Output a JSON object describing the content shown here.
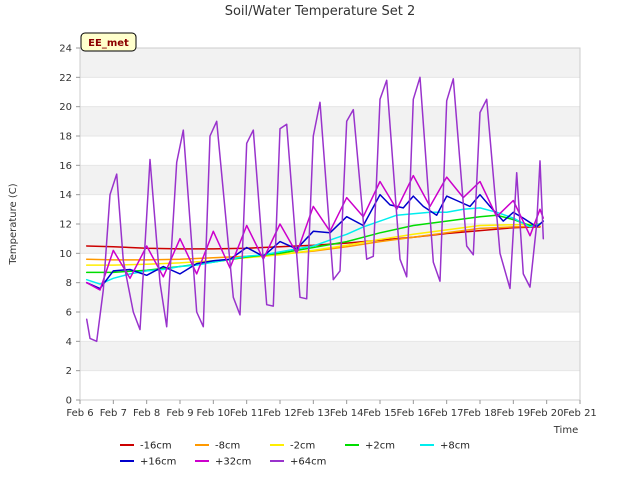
{
  "chart_data": {
    "type": "line",
    "title": "Soil/Water Temperature Set 2",
    "xlabel": "Time",
    "ylabel": "Temperature (C)",
    "badge": "EE_met",
    "ylim": [
      0,
      24
    ],
    "xlim": [
      6,
      21
    ],
    "y_ticks": [
      0,
      2,
      4,
      6,
      8,
      10,
      12,
      14,
      16,
      18,
      20,
      22,
      24
    ],
    "x_ticks": [
      {
        "value": 6,
        "label": "Feb 6"
      },
      {
        "value": 7,
        "label": "Feb 7"
      },
      {
        "value": 8,
        "label": "Feb 8"
      },
      {
        "value": 9,
        "label": "Feb 9"
      },
      {
        "value": 10,
        "label": "Feb 10"
      },
      {
        "value": 11,
        "label": "Feb 11"
      },
      {
        "value": 12,
        "label": "Feb 12"
      },
      {
        "value": 13,
        "label": "Feb 13"
      },
      {
        "value": 14,
        "label": "Feb 14"
      },
      {
        "value": 15,
        "label": "Feb 15"
      },
      {
        "value": 16,
        "label": "Feb 16"
      },
      {
        "value": 17,
        "label": "Feb 17"
      },
      {
        "value": 18,
        "label": "Feb 18"
      },
      {
        "value": 19,
        "label": "Feb 19"
      },
      {
        "value": 20,
        "label": "Feb 20"
      },
      {
        "value": 21,
        "label": "Feb 21"
      }
    ],
    "grid": "horizontal bands",
    "legend_placement": "bottom",
    "series": [
      {
        "name": "-16cm",
        "color": "#cc0000",
        "x": [
          6.2,
          7,
          8,
          9,
          10,
          11,
          12,
          13,
          14,
          15,
          16,
          17,
          18,
          19,
          19.8
        ],
        "y": [
          10.5,
          10.45,
          10.35,
          10.3,
          10.3,
          10.35,
          10.45,
          10.55,
          10.7,
          10.9,
          11.1,
          11.35,
          11.55,
          11.75,
          11.8
        ]
      },
      {
        "name": "-8cm",
        "color": "#ff9900",
        "x": [
          6.2,
          7,
          8,
          9,
          10,
          11,
          12,
          13,
          14,
          15,
          16,
          17,
          18,
          19,
          19.8
        ],
        "y": [
          9.6,
          9.55,
          9.55,
          9.6,
          9.7,
          9.8,
          9.95,
          10.15,
          10.45,
          10.8,
          11.1,
          11.4,
          11.7,
          11.8,
          11.85
        ]
      },
      {
        "name": "-2cm",
        "color": "#ffee00",
        "x": [
          6.2,
          7,
          8,
          9,
          10,
          11,
          12,
          13,
          14,
          15,
          16,
          17,
          18,
          19,
          19.8
        ],
        "y": [
          9.2,
          9.2,
          9.25,
          9.35,
          9.5,
          9.7,
          9.9,
          10.2,
          10.55,
          10.95,
          11.3,
          11.6,
          11.9,
          11.95,
          12.0
        ]
      },
      {
        "name": "+2cm",
        "color": "#00dd00",
        "x": [
          6.2,
          7,
          8,
          9,
          10,
          11,
          12,
          13,
          14,
          15,
          16,
          17,
          18,
          18.5,
          19,
          19.5,
          19.8
        ],
        "y": [
          8.7,
          8.7,
          8.85,
          9.1,
          9.4,
          9.75,
          10.0,
          10.4,
          10.8,
          11.4,
          11.9,
          12.2,
          12.5,
          12.6,
          12.3,
          11.9,
          12.0
        ]
      },
      {
        "name": "+8cm",
        "color": "#00eeee",
        "x": [
          6.2,
          6.6,
          7,
          7.5,
          8,
          8.5,
          9,
          9.5,
          10,
          10.5,
          11,
          11.5,
          12,
          12.5,
          13,
          13.5,
          14,
          14.5,
          15,
          15.5,
          16,
          16.5,
          17,
          17.5,
          18,
          18.5,
          19,
          19.5,
          19.8
        ],
        "y": [
          8.2,
          7.9,
          8.3,
          8.6,
          8.8,
          8.9,
          9.1,
          9.2,
          9.4,
          9.6,
          9.8,
          9.9,
          10.1,
          10.3,
          10.5,
          10.9,
          11.3,
          11.8,
          12.2,
          12.6,
          12.7,
          12.8,
          12.8,
          13.0,
          13.1,
          12.8,
          12.4,
          11.8,
          12.0
        ]
      },
      {
        "name": "+16cm",
        "color": "#0000cc",
        "x": [
          6.2,
          6.6,
          7,
          7.5,
          8,
          8.5,
          9,
          9.5,
          10,
          10.5,
          11,
          11.5,
          12,
          12.5,
          13,
          13.5,
          14,
          14.5,
          15,
          15.3,
          15.7,
          16,
          16.3,
          16.7,
          17,
          17.3,
          17.7,
          18,
          18.3,
          18.7,
          19,
          19.3,
          19.7,
          19.9
        ],
        "y": [
          8.0,
          7.6,
          8.8,
          8.9,
          8.5,
          9.1,
          8.6,
          9.3,
          9.5,
          9.6,
          10.4,
          9.8,
          10.8,
          10.3,
          11.5,
          11.4,
          12.5,
          11.9,
          14.0,
          13.3,
          13.1,
          13.9,
          13.2,
          12.6,
          13.9,
          13.6,
          13.2,
          14.0,
          13.2,
          12.2,
          12.8,
          12.4,
          11.8,
          12.2
        ]
      },
      {
        "name": "+32cm",
        "color": "#cc00cc",
        "x": [
          6.2,
          6.6,
          7,
          7.5,
          8,
          8.5,
          9,
          9.5,
          10,
          10.5,
          11,
          11.5,
          12,
          12.5,
          13,
          13.5,
          14,
          14.5,
          15,
          15.5,
          16,
          16.5,
          17,
          17.5,
          18,
          18.5,
          19,
          19.5,
          19.8,
          19.9
        ],
        "y": [
          8.0,
          7.5,
          10.2,
          8.3,
          10.5,
          8.4,
          11.0,
          8.6,
          11.5,
          9.0,
          11.9,
          9.6,
          12.0,
          10.0,
          13.2,
          11.5,
          13.8,
          12.5,
          14.9,
          13.0,
          15.3,
          13.2,
          15.2,
          13.8,
          14.9,
          12.5,
          13.6,
          11.2,
          13.0,
          12.4
        ]
      },
      {
        "name": "+64cm",
        "color": "#9933cc",
        "x": [
          6.2,
          6.3,
          6.5,
          6.7,
          6.9,
          7.1,
          7.3,
          7.6,
          7.8,
          8.1,
          8.4,
          8.6,
          8.9,
          9.1,
          9.5,
          9.7,
          9.9,
          10.1,
          10.6,
          10.8,
          11.0,
          11.2,
          11.6,
          11.8,
          12.0,
          12.2,
          12.6,
          12.8,
          13.0,
          13.2,
          13.6,
          13.8,
          14.0,
          14.2,
          14.6,
          14.8,
          15.0,
          15.2,
          15.6,
          15.8,
          16.0,
          16.2,
          16.6,
          16.8,
          17.0,
          17.2,
          17.6,
          17.8,
          18.0,
          18.2,
          18.6,
          18.9,
          19.1,
          19.3,
          19.5,
          19.7,
          19.8,
          19.9
        ],
        "y": [
          5.5,
          4.2,
          4.0,
          7.5,
          14.0,
          15.4,
          9.5,
          6.0,
          4.8,
          16.4,
          8.0,
          5.0,
          16.2,
          18.4,
          6.0,
          5.0,
          18.0,
          19.0,
          7.0,
          5.8,
          17.5,
          18.4,
          6.5,
          6.4,
          18.5,
          18.8,
          7.0,
          6.9,
          18.0,
          20.3,
          8.2,
          8.8,
          19.0,
          19.8,
          9.6,
          9.8,
          20.5,
          21.8,
          9.6,
          8.4,
          20.5,
          22.0,
          9.4,
          8.1,
          20.4,
          21.9,
          10.5,
          9.9,
          19.6,
          20.5,
          10.0,
          7.6,
          15.5,
          8.6,
          7.7,
          12.0,
          16.3,
          11.0
        ]
      }
    ]
  }
}
